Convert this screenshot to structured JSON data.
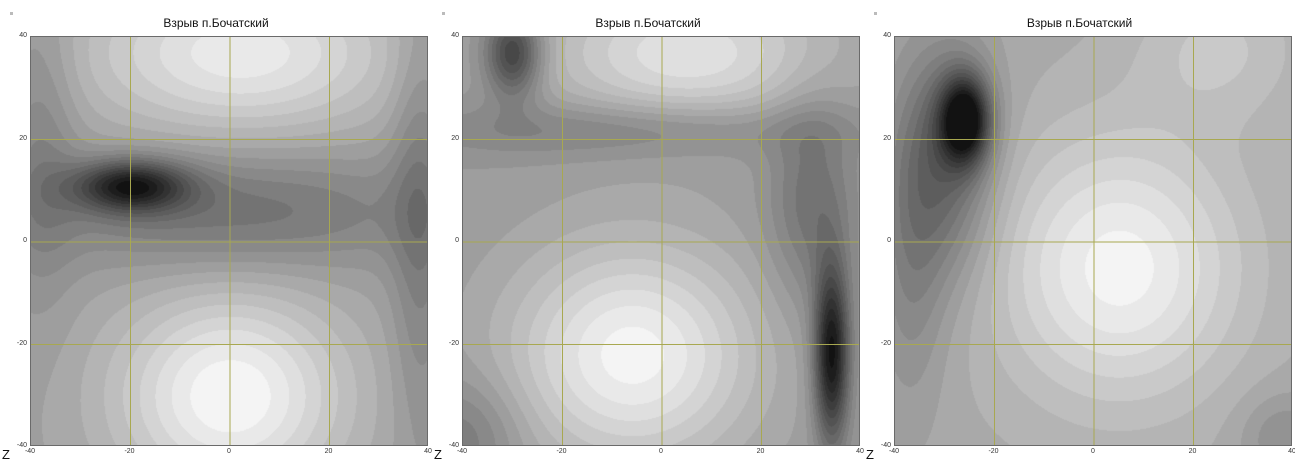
{
  "chart_data": [
    {
      "type": "heatmap",
      "title": "Взрыв п.Бочатский",
      "xlim": [
        -40,
        40
      ],
      "ylim": [
        -40,
        40
      ],
      "xticks": [
        "-40",
        "-20",
        "0",
        "20",
        "40"
      ],
      "yticks": [
        "40",
        "20",
        "0",
        "-20",
        "-40"
      ],
      "grid": true,
      "grid_color": "#a8a850",
      "colormap": "grayscale",
      "z_label": "Z",
      "field": {
        "base": 0.62,
        "bumps": [
          {
            "x": 0,
            "y": -30,
            "amp": 0.38,
            "sx": 16,
            "sy": 14
          },
          {
            "x": 2,
            "y": 37,
            "amp": 0.32,
            "sx": 22,
            "sy": 11
          },
          {
            "x": -20,
            "y": 11,
            "amp": -0.5,
            "sx": 8,
            "sy": 3.5
          },
          {
            "x": 0,
            "y": 6,
            "amp": -0.2,
            "sx": 28,
            "sy": 8
          },
          {
            "x": -38,
            "y": 20,
            "amp": -0.12,
            "sx": 5,
            "sy": 22
          },
          {
            "x": 38,
            "y": 5,
            "amp": -0.15,
            "sx": 4,
            "sy": 30
          }
        ]
      }
    },
    {
      "type": "heatmap",
      "title": "Взрыв п.Бочатский",
      "xlim": [
        -40,
        40
      ],
      "ylim": [
        -40,
        40
      ],
      "xticks": [
        "-40",
        "-20",
        "0",
        "20",
        "40"
      ],
      "yticks": [
        "40",
        "20",
        "0",
        "-20",
        "-40"
      ],
      "grid": true,
      "grid_color": "#a8a850",
      "colormap": "grayscale",
      "z_label": "Z",
      "field": {
        "base": 0.6,
        "bumps": [
          {
            "x": -6,
            "y": -22,
            "amp": 0.38,
            "sx": 17,
            "sy": 15
          },
          {
            "x": 5,
            "y": 37,
            "amp": 0.3,
            "sx": 20,
            "sy": 10
          },
          {
            "x": -30,
            "y": 37,
            "amp": -0.42,
            "sx": 4,
            "sy": 6
          },
          {
            "x": 34,
            "y": -22,
            "amp": -0.58,
            "sx": 2.5,
            "sy": 12
          },
          {
            "x": 30,
            "y": 8,
            "amp": -0.18,
            "sx": 6,
            "sy": 14
          },
          {
            "x": -8,
            "y": 22,
            "amp": -0.15,
            "sx": 30,
            "sy": 4
          },
          {
            "x": -40,
            "y": -38,
            "amp": -0.15,
            "sx": 8,
            "sy": 8
          }
        ]
      }
    },
    {
      "type": "heatmap",
      "title": "Взрыв п.Бочатский",
      "xlim": [
        -40,
        40
      ],
      "ylim": [
        -40,
        40
      ],
      "xticks": [
        "-40",
        "-20",
        "0",
        "20",
        "40"
      ],
      "yticks": [
        "40",
        "20",
        "0",
        "-20",
        "-40"
      ],
      "grid": true,
      "grid_color": "#a8a850",
      "colormap": "grayscale",
      "z_label": "Z",
      "field": {
        "base": 0.66,
        "bumps": [
          {
            "x": 5,
            "y": -5,
            "amp": 0.32,
            "sx": 17,
            "sy": 18
          },
          {
            "x": 25,
            "y": 38,
            "amp": 0.12,
            "sx": 12,
            "sy": 10
          },
          {
            "x": -26,
            "y": 24,
            "amp": -0.62,
            "sx": 3.5,
            "sy": 6
          },
          {
            "x": -30,
            "y": 16,
            "amp": -0.3,
            "sx": 7,
            "sy": 16
          },
          {
            "x": -37,
            "y": -5,
            "amp": -0.14,
            "sx": 5,
            "sy": 20
          },
          {
            "x": 38,
            "y": -38,
            "amp": -0.12,
            "sx": 6,
            "sy": 6
          }
        ]
      }
    }
  ]
}
